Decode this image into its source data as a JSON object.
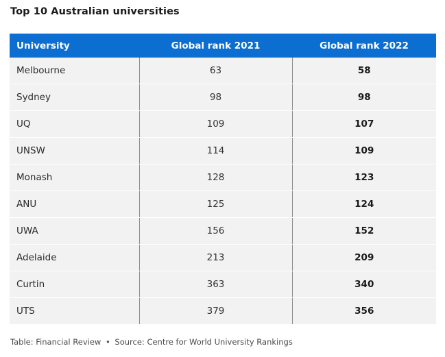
{
  "title": "Top 10 Australian universities",
  "accent_color": "#0b6ed0",
  "chart_data": {
    "type": "table",
    "title": "Top 10 Australian universities",
    "columns": [
      "University",
      "Global rank 2021",
      "Global rank 2022"
    ],
    "rows": [
      [
        "Melbourne",
        "63",
        "58"
      ],
      [
        "Sydney",
        "98",
        "98"
      ],
      [
        "UQ",
        "109",
        "107"
      ],
      [
        "UNSW",
        "114",
        "109"
      ],
      [
        "Monash",
        "128",
        "123"
      ],
      [
        "ANU",
        "125",
        "124"
      ],
      [
        "UWA",
        "156",
        "152"
      ],
      [
        "Adelaide",
        "213",
        "209"
      ],
      [
        "Curtin",
        "363",
        "340"
      ],
      [
        "UTS",
        "379",
        "356"
      ]
    ]
  },
  "footer": {
    "table_credit": "Table: Financial Review",
    "separator": "•",
    "source": "Source: Centre for World University Rankings"
  }
}
